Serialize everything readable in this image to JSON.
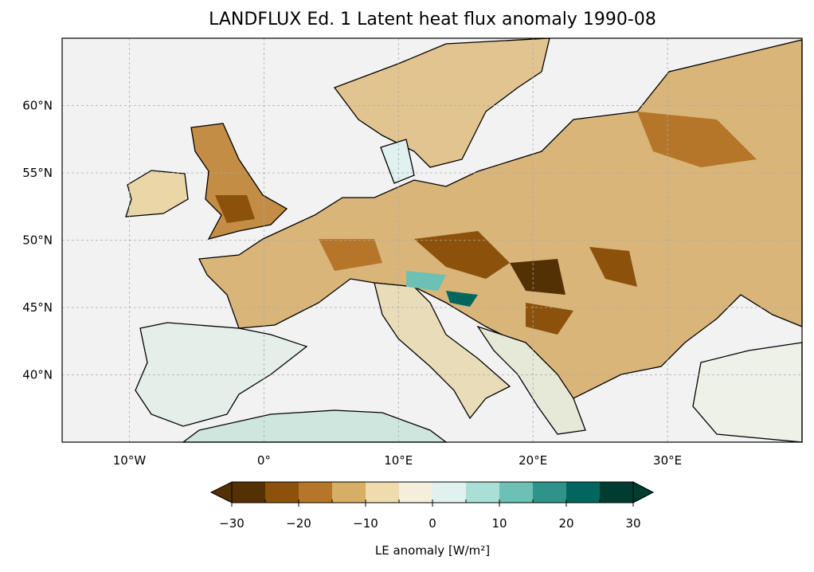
{
  "title": "LANDFLUX Ed. 1 Latent heat flux anomaly 1990-08",
  "map": {
    "lon_range": [
      -15,
      40
    ],
    "lat_range": [
      35,
      65
    ],
    "xticks": [
      {
        "lon": -10,
        "label": "10°W"
      },
      {
        "lon": 0,
        "label": "0°"
      },
      {
        "lon": 10,
        "label": "10°E"
      },
      {
        "lon": 20,
        "label": "20°E"
      },
      {
        "lon": 30,
        "label": "30°E"
      }
    ],
    "yticks": [
      {
        "lat": 60,
        "label": "60°N"
      },
      {
        "lat": 55,
        "label": "55°N"
      },
      {
        "lat": 50,
        "label": "50°N"
      },
      {
        "lat": 45,
        "label": "45°N"
      },
      {
        "lat": 40,
        "label": "40°N"
      }
    ],
    "ocean_color": "#f2f2f2"
  },
  "colorbar": {
    "label": "LE anomaly [W/m²]",
    "range": [
      -30,
      30
    ],
    "step": 5,
    "colors": [
      "#543005",
      "#8c510a",
      "#b57629",
      "#d6ae66",
      "#eedbae",
      "#f5eedd",
      "#e0f1ef",
      "#aadfd5",
      "#6cc0b4",
      "#2f938a",
      "#01665e",
      "#003c30"
    ],
    "ticks": [
      {
        "v": -30,
        "label": "−30"
      },
      {
        "v": -20,
        "label": "−20"
      },
      {
        "v": -10,
        "label": "−10"
      },
      {
        "v": 0,
        "label": "0"
      },
      {
        "v": 10,
        "label": "10"
      },
      {
        "v": 20,
        "label": "20"
      },
      {
        "v": 30,
        "label": "30"
      }
    ]
  }
}
